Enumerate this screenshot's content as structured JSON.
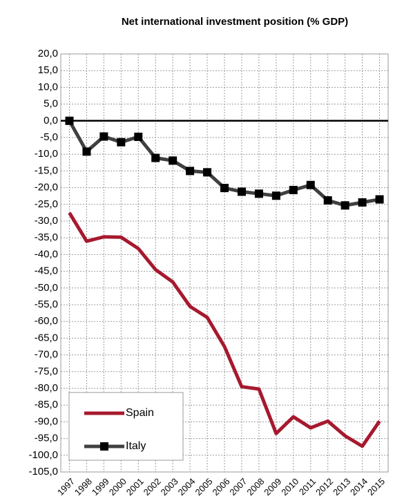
{
  "chart_data": {
    "type": "line",
    "title": "Net international investment position (% GDP)",
    "categories": [
      "1997",
      "1998",
      "1999",
      "2000",
      "2001",
      "2002",
      "2003",
      "2004",
      "2005",
      "2006",
      "2007",
      "2008",
      "2009",
      "2010",
      "2011",
      "2012",
      "2013",
      "2014",
      "2015"
    ],
    "series": [
      {
        "name": "Spain",
        "color": "#a6192e",
        "marker": false,
        "values": [
          -27.5,
          -36,
          -34.7,
          -34.8,
          -38.2,
          -44.5,
          -48.2,
          -55.5,
          -58.8,
          -67.5,
          -79.5,
          -80.2,
          -93.5,
          -88.5,
          -91.8,
          -89.8,
          -94.2,
          -97.3,
          -89.8
        ]
      },
      {
        "name": "Italy",
        "color": "#404040",
        "marker": true,
        "values": [
          0,
          -9.2,
          -4.7,
          -6.4,
          -4.8,
          -11.1,
          -11.9,
          -15,
          -15.4,
          -20.1,
          -21.2,
          -21.8,
          -22.4,
          -20.7,
          -19.2,
          -23.8,
          -25.3,
          -24.4,
          -23.5
        ]
      }
    ],
    "ylim": [
      -105,
      20
    ],
    "yticks": [
      {
        "value": 20,
        "label": "20,0"
      },
      {
        "value": 15,
        "label": "15,0"
      },
      {
        "value": 10,
        "label": "10,0"
      },
      {
        "value": 5,
        "label": "5,0"
      },
      {
        "value": 0,
        "label": "0,0"
      },
      {
        "value": -5,
        "label": "-5,0"
      },
      {
        "value": -10,
        "label": "-10,0"
      },
      {
        "value": -15,
        "label": "-15,0"
      },
      {
        "value": -20,
        "label": "-20,0"
      },
      {
        "value": -25,
        "label": "-25,0"
      },
      {
        "value": -30,
        "label": "-30,0"
      },
      {
        "value": -35,
        "label": "-35,0"
      },
      {
        "value": -40,
        "label": "-40,0"
      },
      {
        "value": -45,
        "label": "-45,0"
      },
      {
        "value": -50,
        "label": "-50,0"
      },
      {
        "value": -55,
        "label": "-55,0"
      },
      {
        "value": -60,
        "label": "-60,0"
      },
      {
        "value": -65,
        "label": "-65,0"
      },
      {
        "value": -70,
        "label": "-70,0"
      },
      {
        "value": -75,
        "label": "-75,0"
      },
      {
        "value": -80,
        "label": "-80,0"
      },
      {
        "value": -85,
        "label": "-85,0"
      },
      {
        "value": -90,
        "label": "-90,0"
      },
      {
        "value": -95,
        "label": "-95,0"
      },
      {
        "value": -100,
        "label": "-100,0"
      },
      {
        "value": -105,
        "label": "-105,0"
      }
    ],
    "grid": true,
    "legend": "lower left"
  }
}
